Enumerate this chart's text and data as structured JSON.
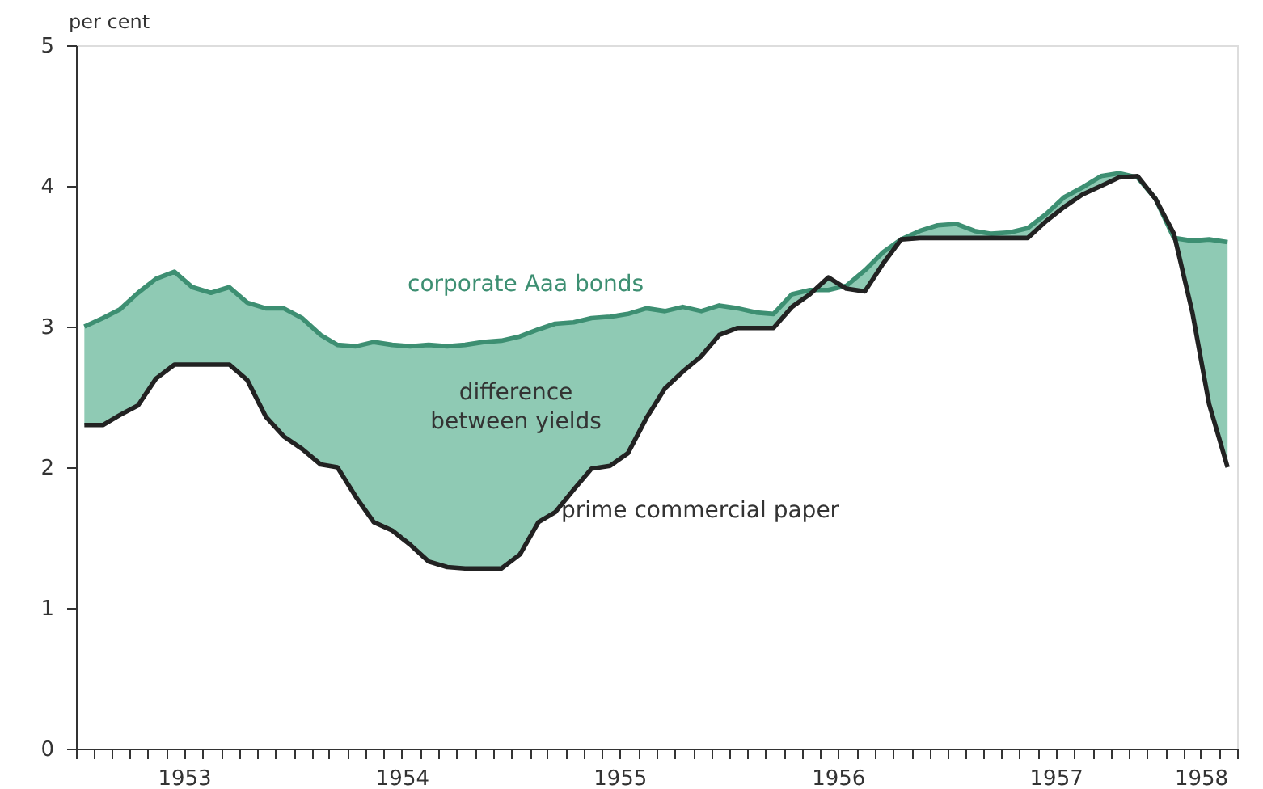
{
  "chart_data": {
    "type": "line",
    "ylabel": "per cent",
    "annotations": [
      "difference between yields"
    ],
    "x": [
      "1953-01-15",
      "1953-02-15",
      "1953-03-15",
      "1953-04-15",
      "1953-05-15",
      "1953-06-15",
      "1953-07-15",
      "1953-08-15",
      "1953-09-15",
      "1953-10-15",
      "1953-11-15",
      "1953-12-15",
      "1954-01-15",
      "1954-02-15",
      "1954-03-15",
      "1954-04-15",
      "1954-05-15",
      "1954-06-15",
      "1954-07-15",
      "1954-08-15",
      "1954-09-15",
      "1954-10-15",
      "1954-11-15",
      "1954-12-15",
      "1955-01-15",
      "1955-02-15",
      "1955-03-15",
      "1955-04-15",
      "1955-05-15",
      "1955-06-15",
      "1955-07-15",
      "1955-08-15",
      "1955-09-15",
      "1955-10-15",
      "1955-11-15",
      "1955-12-15",
      "1956-01-15",
      "1956-02-15",
      "1956-03-15",
      "1956-04-15",
      "1956-05-15",
      "1956-06-15",
      "1956-07-15",
      "1956-08-15",
      "1956-09-15",
      "1956-10-15",
      "1956-11-15",
      "1956-12-15",
      "1957-01-15",
      "1957-02-15",
      "1957-03-15",
      "1957-04-15",
      "1957-05-15",
      "1957-06-15",
      "1957-07-15",
      "1957-08-15",
      "1957-09-15",
      "1957-10-15",
      "1957-11-15",
      "1957-12-15",
      "1958-01-15",
      "1958-02-15",
      "1958-03-15",
      "1958-04-15"
    ],
    "series": [
      {
        "name": "corporate Aaa bonds",
        "type": "line",
        "color": "#3d8f72",
        "lower": [
          2.3,
          2.3,
          2.37,
          2.44,
          2.63,
          2.73,
          2.73,
          2.73,
          2.73,
          2.62,
          2.36,
          2.22,
          2.13,
          2.02,
          2.0,
          1.79,
          1.61,
          1.55,
          1.45,
          1.33,
          1.29,
          1.28,
          1.28,
          1.28,
          1.38,
          1.61,
          1.68,
          1.84,
          1.99,
          2.01,
          2.1,
          2.35,
          2.56,
          2.68,
          2.79,
          2.94,
          2.99,
          2.99,
          2.99,
          3.14,
          3.23,
          3.35,
          3.27,
          3.25,
          3.45,
          3.62,
          3.63,
          3.63,
          3.63,
          3.63,
          3.63,
          3.63,
          3.63,
          3.75,
          3.85,
          3.94,
          4.0,
          4.06,
          4.07,
          3.91,
          3.66,
          3.1,
          2.45,
          2.0
        ],
        "upper": [
          3.0,
          3.06,
          3.12,
          3.24,
          3.34,
          3.39,
          3.28,
          3.24,
          3.28,
          3.17,
          3.13,
          3.13,
          3.06,
          2.94,
          2.87,
          2.86,
          2.89,
          2.87,
          2.86,
          2.87,
          2.86,
          2.87,
          2.89,
          2.9,
          2.93,
          2.98,
          3.02,
          3.03,
          3.06,
          3.07,
          3.09,
          3.13,
          3.11,
          3.14,
          3.11,
          3.15,
          3.13,
          3.1,
          3.09,
          3.23,
          3.26,
          3.26,
          3.29,
          3.4,
          3.53,
          3.62,
          3.68,
          3.72,
          3.73,
          3.68,
          3.66,
          3.67,
          3.7,
          3.8,
          3.92,
          3.99,
          4.07,
          4.09,
          4.06,
          3.91,
          3.63,
          3.61,
          3.62,
          3.6
        ],
        "values": [
          3.0,
          3.06,
          3.12,
          3.24,
          3.34,
          3.39,
          3.28,
          3.24,
          3.28,
          3.17,
          3.13,
          3.13,
          3.06,
          2.94,
          2.87,
          2.86,
          2.89,
          2.87,
          2.86,
          2.87,
          2.86,
          2.87,
          2.89,
          2.9,
          2.93,
          2.98,
          3.02,
          3.03,
          3.06,
          3.07,
          3.09,
          3.13,
          3.11,
          3.14,
          3.11,
          3.15,
          3.13,
          3.1,
          3.09,
          3.23,
          3.26,
          3.26,
          3.29,
          3.4,
          3.53,
          3.62,
          3.68,
          3.72,
          3.73,
          3.68,
          3.66,
          3.67,
          3.7,
          3.8,
          3.92,
          3.99,
          4.07,
          4.09,
          4.06,
          3.91,
          3.63,
          3.61,
          3.62,
          3.6
        ]
      },
      {
        "name": "prime commercial paper",
        "type": "line",
        "color": "#222222",
        "values": [
          2.3,
          2.3,
          2.37,
          2.44,
          2.63,
          2.73,
          2.73,
          2.73,
          2.73,
          2.62,
          2.36,
          2.22,
          2.13,
          2.02,
          2.0,
          1.79,
          1.61,
          1.55,
          1.45,
          1.33,
          1.29,
          1.28,
          1.28,
          1.28,
          1.38,
          1.61,
          1.68,
          1.84,
          1.99,
          2.01,
          2.1,
          2.35,
          2.56,
          2.68,
          2.79,
          2.94,
          2.99,
          2.99,
          2.99,
          3.14,
          3.23,
          3.35,
          3.27,
          3.25,
          3.45,
          3.62,
          3.63,
          3.63,
          3.63,
          3.63,
          3.63,
          3.63,
          3.63,
          3.75,
          3.85,
          3.94,
          4.0,
          4.06,
          4.07,
          3.91,
          3.66,
          3.1,
          2.45,
          2.0
        ]
      }
    ],
    "xlim": [
      "1953-01-01",
      "1958-05-01"
    ],
    "xticks": [
      {
        "value": "1953-01-01",
        "label": null
      },
      {
        "value": "1953-02-01",
        "label": null
      },
      {
        "value": "1953-03-01",
        "label": null
      },
      {
        "value": "1953-04-01",
        "label": null
      },
      {
        "value": "1953-05-01",
        "label": null
      },
      {
        "value": "1953-06-01",
        "label": null
      },
      {
        "value": "1953-07-01",
        "label": "1953"
      },
      {
        "value": "1953-08-01",
        "label": null
      },
      {
        "value": "1953-09-01",
        "label": null
      },
      {
        "value": "1953-10-01",
        "label": null
      },
      {
        "value": "1953-11-01",
        "label": null
      },
      {
        "value": "1953-12-01",
        "label": null
      },
      {
        "value": "1954-01-01",
        "label": null
      },
      {
        "value": "1954-02-01",
        "label": null
      },
      {
        "value": "1954-03-01",
        "label": null
      },
      {
        "value": "1954-04-01",
        "label": null
      },
      {
        "value": "1954-05-01",
        "label": null
      },
      {
        "value": "1954-06-01",
        "label": null
      },
      {
        "value": "1954-07-01",
        "label": "1954"
      },
      {
        "value": "1954-08-01",
        "label": null
      },
      {
        "value": "1954-09-01",
        "label": null
      },
      {
        "value": "1954-10-01",
        "label": null
      },
      {
        "value": "1954-11-01",
        "label": null
      },
      {
        "value": "1954-12-01",
        "label": null
      },
      {
        "value": "1955-01-01",
        "label": null
      },
      {
        "value": "1955-02-01",
        "label": null
      },
      {
        "value": "1955-03-01",
        "label": null
      },
      {
        "value": "1955-04-01",
        "label": null
      },
      {
        "value": "1955-05-01",
        "label": null
      },
      {
        "value": "1955-06-01",
        "label": null
      },
      {
        "value": "1955-07-01",
        "label": "1955"
      },
      {
        "value": "1955-08-01",
        "label": null
      },
      {
        "value": "1955-09-01",
        "label": null
      },
      {
        "value": "1955-10-01",
        "label": null
      },
      {
        "value": "1955-11-01",
        "label": null
      },
      {
        "value": "1955-12-01",
        "label": null
      },
      {
        "value": "1956-01-01",
        "label": null
      },
      {
        "value": "1956-02-01",
        "label": null
      },
      {
        "value": "1956-03-01",
        "label": null
      },
      {
        "value": "1956-04-01",
        "label": null
      },
      {
        "value": "1956-05-01",
        "label": null
      },
      {
        "value": "1956-06-01",
        "label": null
      },
      {
        "value": "1956-07-01",
        "label": "1956"
      },
      {
        "value": "1956-08-01",
        "label": null
      },
      {
        "value": "1956-09-01",
        "label": null
      },
      {
        "value": "1956-10-01",
        "label": null
      },
      {
        "value": "1956-11-01",
        "label": null
      },
      {
        "value": "1956-12-01",
        "label": null
      },
      {
        "value": "1957-01-01",
        "label": null
      },
      {
        "value": "1957-02-01",
        "label": null
      },
      {
        "value": "1957-03-01",
        "label": null
      },
      {
        "value": "1957-04-01",
        "label": null
      },
      {
        "value": "1957-05-01",
        "label": null
      },
      {
        "value": "1957-06-01",
        "label": null
      },
      {
        "value": "1957-07-01",
        "label": "1957"
      },
      {
        "value": "1957-08-01",
        "label": null
      },
      {
        "value": "1957-09-01",
        "label": null
      },
      {
        "value": "1957-10-01",
        "label": null
      },
      {
        "value": "1957-11-01",
        "label": null
      },
      {
        "value": "1957-12-01",
        "label": null
      },
      {
        "value": "1958-01-01",
        "label": null
      },
      {
        "value": "1958-02-01",
        "label": null
      },
      {
        "value": "1958-03-01",
        "label": "1958"
      },
      {
        "value": "1958-04-01",
        "label": null
      },
      {
        "value": "1958-05-01",
        "label": null
      }
    ],
    "ylim": [
      0,
      5
    ],
    "yticks": [
      0,
      1,
      2,
      3,
      4,
      5
    ],
    "grid": false,
    "legend": false,
    "line_style": "solid",
    "marker": "none"
  }
}
